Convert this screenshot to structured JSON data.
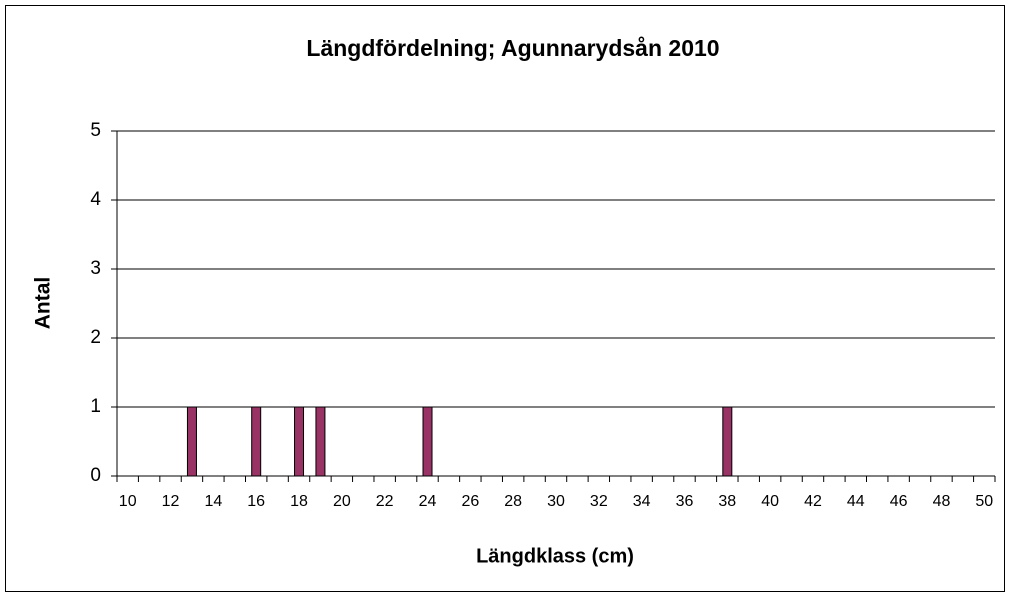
{
  "chart_data": {
    "type": "bar",
    "title": "Längdfördelning; Agunnarydsån 2010",
    "x_label": "Längdklass (cm)",
    "y_label": "Antal",
    "categories": [
      10,
      null,
      12,
      null,
      14,
      null,
      16,
      null,
      18,
      null,
      20,
      null,
      22,
      null,
      24,
      null,
      26,
      null,
      28,
      null,
      30,
      null,
      32,
      null,
      34,
      null,
      36,
      null,
      38,
      null,
      40,
      null,
      42,
      null,
      44,
      null,
      46,
      null,
      48,
      null,
      50
    ],
    "values": [
      0,
      0,
      0,
      1,
      0,
      0,
      1,
      0,
      1,
      1,
      0,
      0,
      0,
      0,
      1,
      0,
      0,
      0,
      0,
      0,
      0,
      0,
      0,
      0,
      0,
      0,
      0,
      0,
      1,
      0,
      0,
      0,
      0,
      0,
      0,
      0,
      0,
      0,
      0,
      0,
      0
    ],
    "color": "#993366",
    "ylim": [
      0,
      5
    ],
    "yticks": [
      0,
      1,
      2,
      3,
      4,
      5
    ],
    "grid": true
  }
}
